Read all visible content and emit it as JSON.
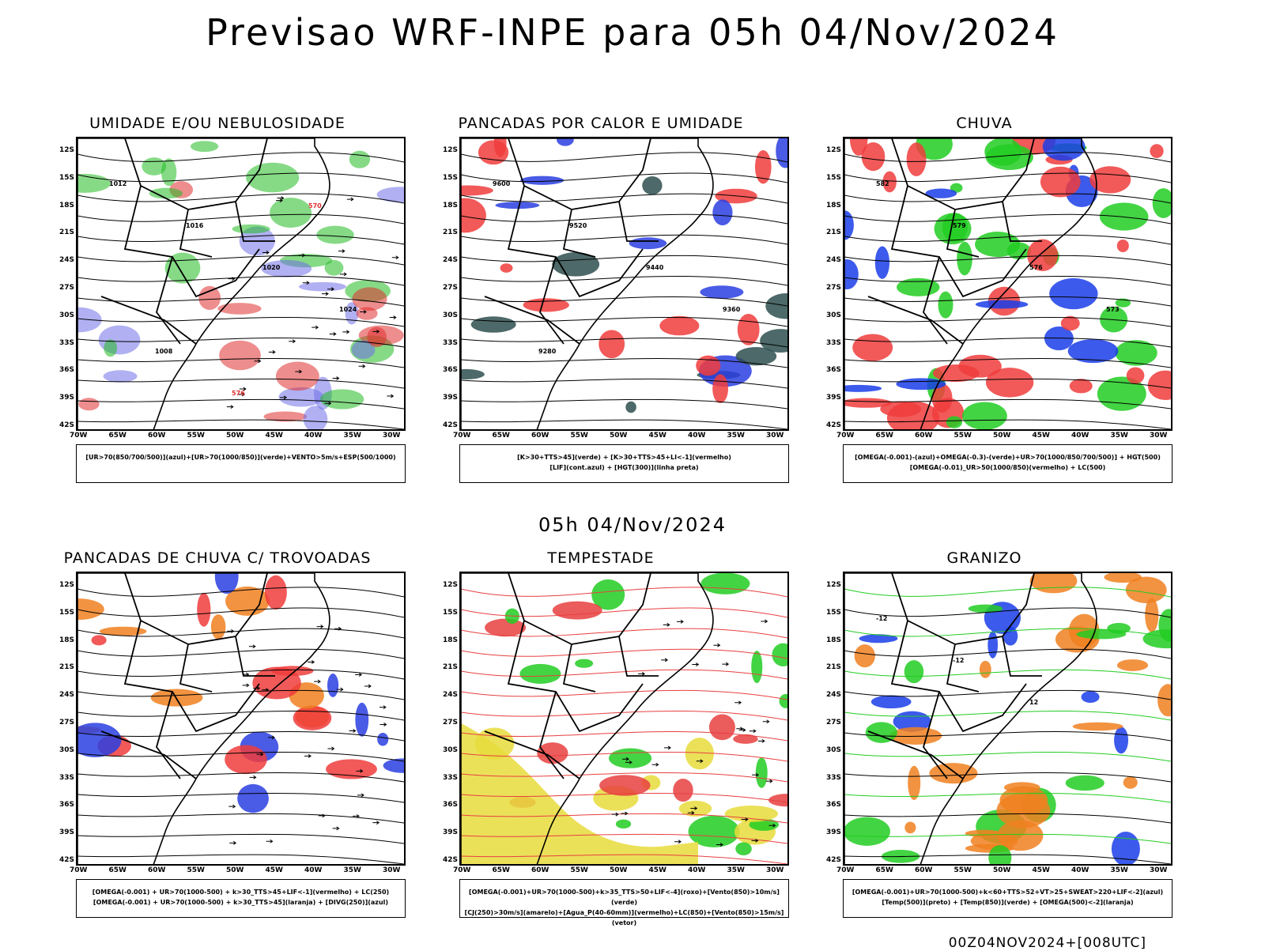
{
  "header": {
    "title": "Previsao WRF-INPE  para 05h 04/Nov/2024"
  },
  "middle": {
    "title": "05h 04/Nov/2024"
  },
  "footer": {
    "run": "00Z04NOV2024+[008UTC]"
  },
  "axes": {
    "lat_labels": [
      "12S",
      "15S",
      "18S",
      "21S",
      "24S",
      "27S",
      "30S",
      "33S",
      "36S",
      "39S",
      "42S"
    ],
    "lon_labels": [
      "70W",
      "65W",
      "60W",
      "55W",
      "50W",
      "45W",
      "40W",
      "35W",
      "30W"
    ]
  },
  "panels": [
    {
      "title": "UMIDADE E/OU NEBULOSIDADE",
      "legend": [
        "[UR>70(850/700/500)](azul)+[UR>70(1000/850)](verde)+VENTO>5m/s+ESP(500/1000)"
      ],
      "contour_labels": [
        "1012",
        "1016",
        "1020",
        "1024",
        "1008",
        "576",
        "570"
      ],
      "colors": [
        "#7070e8",
        "#22bb22",
        "#e03030"
      ]
    },
    {
      "title": "PANCADAS POR CALOR E UMIDADE",
      "legend": [
        "[K>30+TTS>45](verde) + [K>30+TTS>45+LI<-1](vermelho)",
        "[LIF](cont.azul) + [HGT(300)](linha preta)"
      ],
      "contour_labels": [
        "9600",
        "9520",
        "9440",
        "9360",
        "9280"
      ],
      "colors": [
        "#f03c3c",
        "#2e4f4f",
        "#2a3ee0"
      ]
    },
    {
      "title": "CHUVA",
      "legend": [
        "[OMEGA(-0.001)-(azul)+OMEGA(-0.3)-(verde)+UR>70(1000/850/700/500)] + HGT(500)",
        "[OMEGA(-0.01)_UR>50(1000/850)(vermelho) + LC(500)"
      ],
      "contour_labels": [
        "582",
        "579",
        "576",
        "573"
      ],
      "colors": [
        "#f03c3c",
        "#1a3de8",
        "#22cc22"
      ]
    },
    {
      "title": "PANCADAS DE CHUVA C/ TROVOADAS",
      "legend": [
        "[OMEGA(-0.001) + UR>70(1000-500) + k>30_TTS>45+LIF<-1](vermelho) + LC(250)",
        "[OMEGA(-0.001) + UR>70(1000-500) + k>30_TTS>45](laranja) + [DIVG(250)](azul)"
      ],
      "contour_labels": [],
      "colors": [
        "#f03c3c",
        "#f08020",
        "#2a3ee0"
      ]
    },
    {
      "title": "TEMPESTADE",
      "legend": [
        "[OMEGA(-0.001)+UR>70(1000-500)+k>35_TTS>50+LIF<-4](roxo)+[Vento(850)>10m/s](verde)",
        "[CJ(250)>30m/s](amarelo)+[Agua_P(40-60mm)](vermelho)+LC(850)+[Vento(850)>15m/s](vetor)"
      ],
      "contour_labels": [],
      "colors": [
        "#e8dc3c",
        "#22cc22",
        "#e84040"
      ]
    },
    {
      "title": "GRANIZO",
      "legend": [
        "[OMEGA(-0.001)+UR>70(1000-500)+k<60+TTS>52+VT>25+SWEAT>220+LIF<-2](azul)",
        "[Temp(500)](preto) + [Temp(850)](verde) + [OMEGA(500)<-2](laranja)"
      ],
      "contour_labels": [
        "-12",
        "-12",
        "12"
      ],
      "colors": [
        "#22cc22",
        "#1a3de8",
        "#f08020"
      ]
    }
  ]
}
